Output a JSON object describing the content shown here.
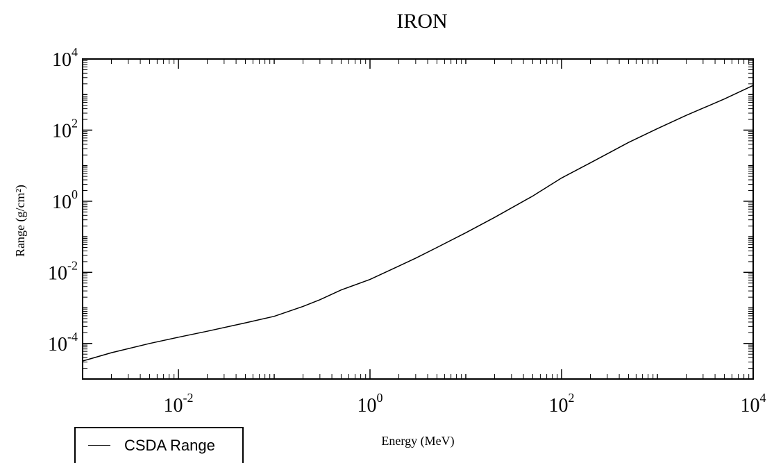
{
  "chart_data": {
    "type": "line",
    "title": "IRON",
    "xlabel": "Energy (MeV)",
    "ylabel": "Range (g/cm²)",
    "x_scale": "log",
    "y_scale": "log",
    "xlim": [
      0.001,
      10000
    ],
    "ylim": [
      1e-05,
      10000
    ],
    "x_ticks": [
      {
        "value": 0.01,
        "base": "10",
        "exp": "-2"
      },
      {
        "value": 1,
        "base": "10",
        "exp": "0"
      },
      {
        "value": 100,
        "base": "10",
        "exp": "2"
      },
      {
        "value": 10000,
        "base": "10",
        "exp": "4"
      }
    ],
    "y_ticks": [
      {
        "value": 0.0001,
        "base": "10",
        "exp": "-4"
      },
      {
        "value": 0.01,
        "base": "10",
        "exp": "-2"
      },
      {
        "value": 1,
        "base": "10",
        "exp": "0"
      },
      {
        "value": 100,
        "base": "10",
        "exp": "2"
      },
      {
        "value": 10000,
        "base": "10",
        "exp": "4"
      }
    ],
    "grid": false,
    "legend_position": "bottom-left, below the plot",
    "series": [
      {
        "name": "CSDA Range",
        "x": [
          0.001,
          0.002,
          0.005,
          0.01,
          0.02,
          0.05,
          0.1,
          0.2,
          0.3,
          0.5,
          1,
          2,
          3,
          5,
          10,
          20,
          50,
          100,
          200,
          500,
          1000,
          2000,
          5000,
          10000
        ],
        "y": [
          3.2e-05,
          5.5e-05,
          0.0001,
          0.00015,
          0.00022,
          0.00038,
          0.00058,
          0.0011,
          0.0017,
          0.0032,
          0.0063,
          0.015,
          0.025,
          0.05,
          0.13,
          0.35,
          1.4,
          4.5,
          12,
          45,
          110,
          260,
          750,
          1800
        ]
      }
    ],
    "line_color": "#000000"
  }
}
